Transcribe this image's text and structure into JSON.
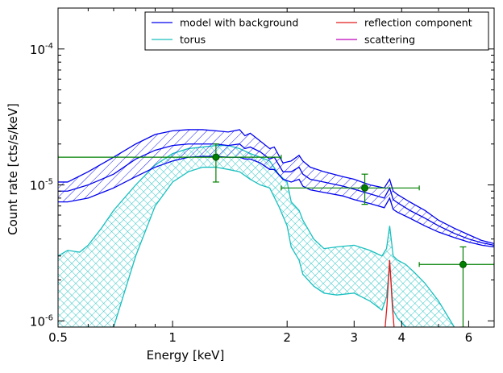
{
  "chart_data": {
    "type": "line",
    "xlabel": "Energy [keV]",
    "ylabel": "Count rate [cts/s/keV]",
    "x_scale": "log",
    "y_scale": "log",
    "xlim": [
      0.5,
      7.0
    ],
    "ylim": [
      9e-07,
      0.0002
    ],
    "x_ticks": [
      {
        "value": 0.5,
        "label": "0.5"
      },
      {
        "value": 1,
        "label": "1"
      },
      {
        "value": 2,
        "label": "2"
      },
      {
        "value": 3,
        "label": "3"
      },
      {
        "value": 4,
        "label": "4"
      },
      {
        "value": 6,
        "label": "6"
      }
    ],
    "y_ticks": [
      {
        "value": 1e-06,
        "base": "10",
        "exp": "-6"
      },
      {
        "value": 1e-05,
        "base": "10",
        "exp": "-5"
      },
      {
        "value": 0.0001,
        "base": "10",
        "exp": "-4"
      }
    ],
    "grid": false,
    "legend_position": "top-right",
    "colors": {
      "model": "#0000ee",
      "torus": "#1abfbf",
      "reflection": "#e31a1c",
      "scattering": "#bf00bf",
      "data": "#008000"
    },
    "legend": [
      {
        "label": "model with background",
        "color": "#0000ee"
      },
      {
        "label": "reflection component",
        "color": "#e31a1c"
      },
      {
        "label": "torus",
        "color": "#1abfbf"
      },
      {
        "label": "scattering",
        "color": "#bf00bf"
      }
    ],
    "series": [
      {
        "name": "model with background",
        "band": true,
        "x": [
          0.5,
          0.53,
          0.6,
          0.7,
          0.8,
          0.9,
          1.0,
          1.1,
          1.2,
          1.3,
          1.4,
          1.5,
          1.55,
          1.6,
          1.7,
          1.8,
          1.85,
          1.95,
          2.05,
          2.15,
          2.2,
          2.3,
          2.5,
          2.8,
          3.0,
          3.3,
          3.6,
          3.72,
          3.8,
          3.9,
          4.2,
          4.6,
          5.0,
          5.5,
          6.0,
          6.5,
          7.0
        ],
        "upper": [
          1.05e-05,
          1.05e-05,
          1.25e-05,
          1.6e-05,
          2e-05,
          2.35e-05,
          2.5e-05,
          2.55e-05,
          2.55e-05,
          2.5e-05,
          2.45e-05,
          2.55e-05,
          2.3e-05,
          2.4e-05,
          2.1e-05,
          1.85e-05,
          1.9e-05,
          1.45e-05,
          1.5e-05,
          1.65e-05,
          1.5e-05,
          1.35e-05,
          1.25e-05,
          1.15e-05,
          1.1e-05,
          1e-05,
          9.5e-06,
          1.1e-05,
          9e-06,
          8.5e-06,
          7.5e-06,
          6.5e-06,
          5.5e-06,
          4.8e-06,
          4.3e-06,
          3.9e-06,
          3.7e-06
        ],
        "lower": [
          7.5e-06,
          7.5e-06,
          8e-06,
          9.5e-06,
          1.15e-05,
          1.35e-05,
          1.5e-05,
          1.6e-05,
          1.62e-05,
          1.62e-05,
          1.6e-05,
          1.6e-05,
          1.55e-05,
          1.55e-05,
          1.45e-05,
          1.3e-05,
          1.3e-05,
          1.1e-05,
          1.05e-05,
          1.1e-05,
          9.8e-06,
          9.2e-06,
          8.8e-06,
          8.3e-06,
          7.8e-06,
          7.3e-06,
          6.8e-06,
          8e-06,
          6.6e-06,
          6.3e-06,
          5.7e-06,
          5e-06,
          4.5e-06,
          4.1e-06,
          3.8e-06,
          3.6e-06,
          3.5e-06
        ],
        "middle": [
          9e-06,
          9e-06,
          1e-05,
          1.2e-05,
          1.55e-05,
          1.8e-05,
          1.95e-05,
          2e-05,
          2e-05,
          2e-05,
          1.95e-05,
          2e-05,
          1.85e-05,
          1.9e-05,
          1.75e-05,
          1.55e-05,
          1.6e-05,
          1.25e-05,
          1.25e-05,
          1.35e-05,
          1.2e-05,
          1.1e-05,
          1.05e-05,
          9.8e-06,
          9.3e-06,
          8.6e-06,
          8e-06,
          9.5e-06,
          7.8e-06,
          7.4e-06,
          6.5e-06,
          5.7e-06,
          5e-06,
          4.4e-06,
          4e-06,
          3.75e-06,
          3.6e-06
        ]
      },
      {
        "name": "torus",
        "band": true,
        "x": [
          0.5,
          0.53,
          0.57,
          0.6,
          0.65,
          0.7,
          0.8,
          0.9,
          1.0,
          1.1,
          1.2,
          1.3,
          1.4,
          1.5,
          1.6,
          1.7,
          1.8,
          1.9,
          2.0,
          2.05,
          2.15,
          2.2,
          2.35,
          2.5,
          2.7,
          3.0,
          3.3,
          3.55,
          3.65,
          3.72,
          3.8,
          3.9,
          4.1,
          4.3,
          4.6,
          5.0,
          5.5
        ],
        "upper": [
          3e-06,
          3.3e-06,
          3.2e-06,
          3.6e-06,
          4.8e-06,
          6.5e-06,
          1e-05,
          1.4e-05,
          1.7e-05,
          1.85e-05,
          1.9e-05,
          1.95e-05,
          1.95e-05,
          1.85e-05,
          1.7e-05,
          1.6e-05,
          1.5e-05,
          1.2e-05,
          1.05e-05,
          7.5e-06,
          6.5e-06,
          5.5e-06,
          4e-06,
          3.4e-06,
          3.5e-06,
          3.6e-06,
          3.3e-06,
          3e-06,
          3.4e-06,
          5e-06,
          3e-06,
          2.8e-06,
          2.6e-06,
          2.3e-06,
          1.9e-06,
          1.4e-06,
          9e-07
        ],
        "lower": [
          9e-07,
          9e-07,
          9e-07,
          9e-07,
          9e-07,
          9e-07,
          3e-06,
          7e-06,
          1.05e-05,
          1.25e-05,
          1.35e-05,
          1.35e-05,
          1.3e-05,
          1.25e-05,
          1.1e-05,
          1e-05,
          9.5e-06,
          7e-06,
          5e-06,
          3.5e-06,
          2.8e-06,
          2.2e-06,
          1.8e-06,
          1.6e-06,
          1.55e-06,
          1.6e-06,
          1.4e-06,
          1.2e-06,
          1.5e-06,
          2.6e-06,
          1.2e-06,
          1.05e-06,
          9e-07,
          9e-07,
          9e-07,
          9e-07,
          9e-07
        ]
      },
      {
        "name": "reflection component",
        "line": true,
        "x": [
          3.62,
          3.66,
          3.7,
          3.72,
          3.74,
          3.78,
          3.82
        ],
        "y": [
          9e-07,
          1.3e-06,
          2.2e-06,
          2.8e-06,
          2.2e-06,
          1.3e-06,
          9e-07
        ]
      }
    ],
    "data_points": [
      {
        "x": 1.3,
        "y": 1.6e-05,
        "xerr_low": 0.5,
        "xerr_high": 1.93,
        "yerr_low": 1.05e-05,
        "yerr_high": 2e-05
      },
      {
        "x": 3.2,
        "y": 9.5e-06,
        "xerr_low": 1.93,
        "xerr_high": 4.45,
        "yerr_low": 7.2e-06,
        "yerr_high": 1.2e-05
      },
      {
        "x": 5.8,
        "y": 2.6e-06,
        "xerr_low": 4.45,
        "xerr_high": 7.0,
        "yerr_low": 9e-07,
        "yerr_high": 3.5e-06
      }
    ]
  }
}
